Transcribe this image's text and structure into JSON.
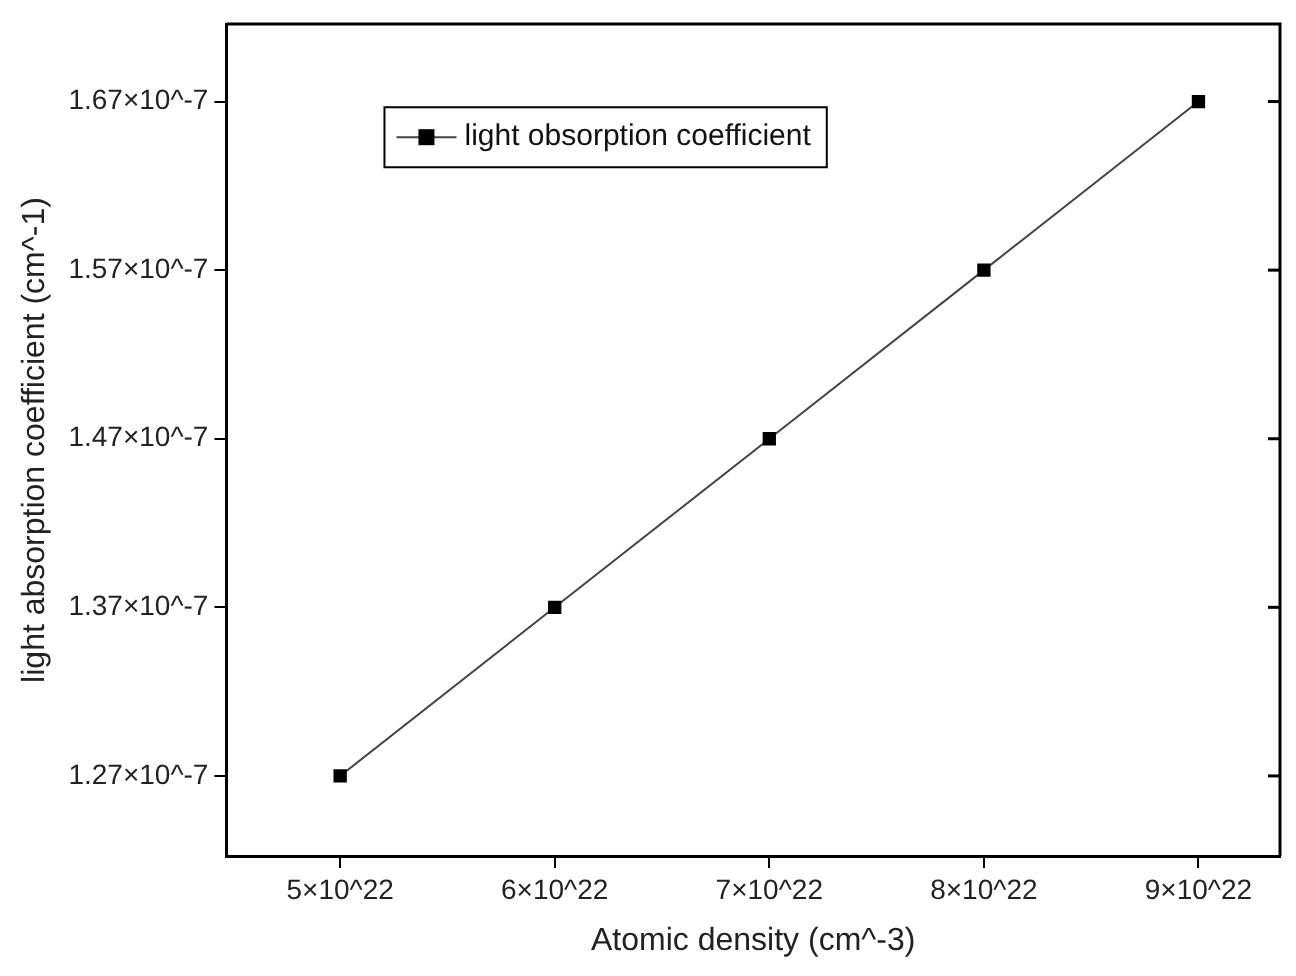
{
  "chart_data": {
    "type": "line",
    "xlabel": "Atomic density (cm^-3)",
    "ylabel": "light absorption coefficient (cm^-1)",
    "x": [
      5e+22,
      6e+22,
      7e+22,
      8e+22,
      9e+22
    ],
    "series": [
      {
        "name": "light obsorption coefficient",
        "color": "#000000",
        "values": [
          1.27e-07,
          1.37e-07,
          1.47e-07,
          1.57e-07,
          1.67e-07
        ]
      }
    ],
    "xlim": [
      4.47e+22,
      9.38e+22
    ],
    "ylim": [
      1.2225e-07,
      1.716e-07
    ],
    "xticks": [
      {
        "value": 5e+22,
        "label": "5×10^22"
      },
      {
        "value": 6e+22,
        "label": "6×10^22"
      },
      {
        "value": 7e+22,
        "label": "7×10^22"
      },
      {
        "value": 8e+22,
        "label": "8×10^22"
      },
      {
        "value": 9e+22,
        "label": "9×10^22"
      }
    ],
    "yticks": [
      {
        "value": 1.27e-07,
        "label": "1.27×10^-7"
      },
      {
        "value": 1.37e-07,
        "label": "1.37×10^-7"
      },
      {
        "value": 1.47e-07,
        "label": "1.47×10^-7"
      },
      {
        "value": 1.57e-07,
        "label": "1.57×10^-7"
      },
      {
        "value": 1.67e-07,
        "label": "1.67×10^-7"
      }
    ],
    "grid": false,
    "legend": "top left",
    "marker": "square",
    "line_style": "solid"
  }
}
